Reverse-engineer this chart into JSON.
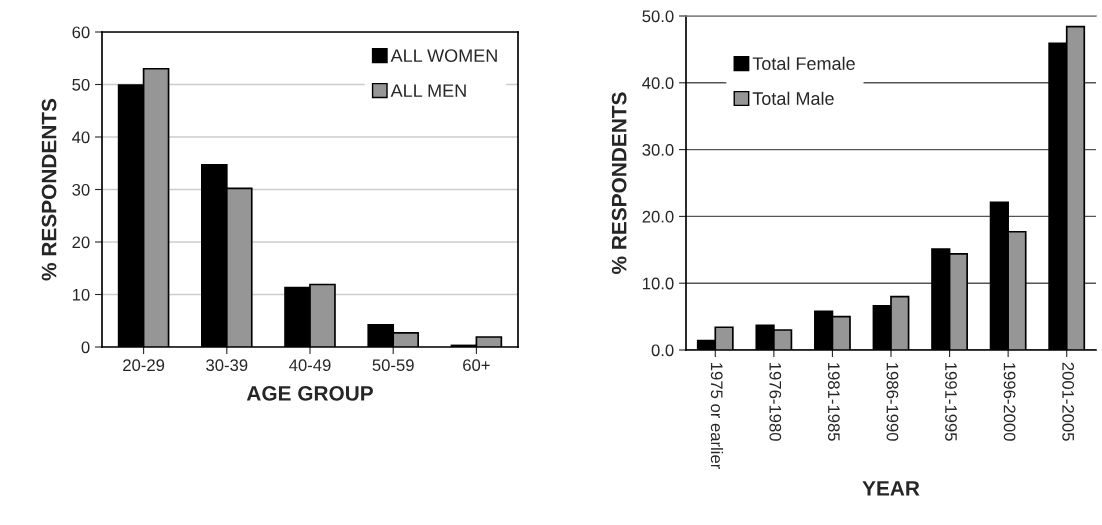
{
  "chart_data": [
    {
      "type": "bar",
      "categories": [
        "20-29",
        "30-39",
        "40-49",
        "50-59",
        "60+"
      ],
      "xlabel": "AGE GROUP",
      "ylabel": "% RESPONDENTS",
      "series": [
        {
          "name": "ALL WOMEN",
          "color": "#000000",
          "values": [
            49.9,
            34.7,
            11.3,
            4.2,
            0.3
          ]
        },
        {
          "name": "ALL MEN",
          "color": "#969696",
          "values": [
            53.0,
            30.2,
            11.9,
            2.7,
            1.9
          ]
        }
      ],
      "ylim": [
        0,
        60
      ],
      "yticks": [
        0,
        10,
        20,
        30,
        40,
        50,
        60
      ],
      "grid": "y",
      "legend": "top right"
    },
    {
      "type": "bar",
      "categories": [
        "1975 or earlier",
        "1976-1980",
        "1981-1985",
        "1986-1990",
        "1991-1995",
        "1996-2000",
        "2001-2005"
      ],
      "xlabel": "YEAR",
      "ylabel": "% RESPONDENTS",
      "series": [
        {
          "name": "Total Female",
          "color": "#000000",
          "values": [
            1.4,
            3.7,
            5.8,
            6.6,
            15.1,
            22.1,
            45.9
          ]
        },
        {
          "name": "Total Male",
          "color": "#969696",
          "values": [
            3.4,
            3.0,
            5.0,
            8.0,
            14.4,
            17.7,
            48.4
          ]
        }
      ],
      "ylim": [
        0,
        50
      ],
      "yticks": [
        {
          "value": 0,
          "label": "0.0"
        },
        {
          "value": 10,
          "label": "10.0"
        },
        {
          "value": 20,
          "label": "20.0"
        },
        {
          "value": 30,
          "label": "30.0"
        },
        {
          "value": 40,
          "label": "40.0"
        },
        {
          "value": 50,
          "label": "50.0"
        }
      ],
      "grid": "y",
      "legend": "top left"
    }
  ]
}
